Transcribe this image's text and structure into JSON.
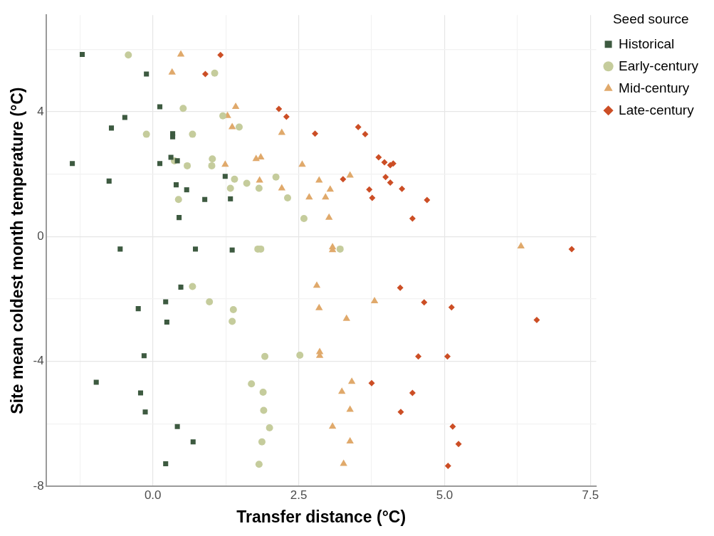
{
  "chart_data": {
    "type": "scatter",
    "xlabel": "Transfer distance (°C)",
    "ylabel": "Site mean coldest month temperature (°C)",
    "legend_title": "Seed source",
    "legend": "top right",
    "grid": true,
    "xlim": [
      -1.83,
      7.6
    ],
    "ylim": [
      -8,
      7.1
    ],
    "xticks": [
      {
        "value": -1.25,
        "label": null
      },
      {
        "value": 0,
        "label": "0.0"
      },
      {
        "value": 1.25,
        "label": null
      },
      {
        "value": 2.5,
        "label": "2.5"
      },
      {
        "value": 3.75,
        "label": null
      },
      {
        "value": 5,
        "label": "5.0"
      },
      {
        "value": 6.25,
        "label": null
      },
      {
        "value": 7.5,
        "label": "7.5"
      }
    ],
    "yticks": [
      -8,
      {
        "value": -6,
        "label": null
      },
      -4,
      {
        "value": -2,
        "label": null
      },
      0,
      {
        "value": 2,
        "label": null
      },
      4,
      {
        "value": 6,
        "label": null
      }
    ],
    "series": [
      {
        "name": "Historical",
        "color": "#3d5a40",
        "marker": "square",
        "x": [
          -1.21,
          -0.11,
          0.12,
          -0.48,
          -0.71,
          0.34,
          0.34,
          -1.38,
          0.12,
          0.31,
          0.42,
          -0.75,
          0.4,
          0.58,
          0.89,
          1.24,
          1.33,
          0.45,
          -0.56,
          0.73,
          1.36,
          0.48,
          -0.25,
          0.22,
          0.24,
          -0.15,
          -0.97,
          -0.21,
          -0.13,
          0.42,
          0.69,
          0.22
        ],
        "values": [
          5.84,
          5.21,
          4.16,
          3.82,
          3.48,
          3.3,
          3.2,
          2.34,
          2.34,
          2.54,
          2.43,
          1.78,
          1.66,
          1.5,
          1.19,
          1.93,
          1.21,
          0.61,
          -0.4,
          -0.4,
          -0.43,
          -1.62,
          -2.31,
          -2.09,
          -2.74,
          -3.82,
          -4.67,
          -5.01,
          -5.62,
          -6.09,
          -6.58,
          -7.28
        ]
      },
      {
        "name": "Early-century",
        "color": "#c5cc9c",
        "marker": "circle",
        "x": [
          -0.42,
          1.06,
          0.52,
          -0.11,
          0.68,
          1.2,
          1.48,
          0.37,
          1.02,
          1.01,
          0.59,
          1.4,
          1.33,
          0.44,
          1.61,
          2.11,
          1.82,
          2.31,
          2.59,
          1.8,
          1.85,
          3.21,
          0.68,
          0.97,
          1.38,
          1.36,
          1.92,
          2.52,
          1.69,
          1.89,
          1.9,
          2.0,
          1.87,
          1.82
        ],
        "values": [
          5.82,
          5.24,
          4.11,
          3.28,
          3.28,
          3.87,
          3.51,
          2.43,
          2.49,
          2.27,
          2.27,
          1.84,
          1.55,
          1.19,
          1.71,
          1.91,
          1.55,
          1.24,
          0.58,
          -0.4,
          -0.4,
          -0.4,
          -1.6,
          -2.09,
          -2.34,
          -2.72,
          -3.84,
          -3.8,
          -4.72,
          -4.99,
          -5.57,
          -6.13,
          -6.58,
          -7.3
        ]
      },
      {
        "name": "Mid-century",
        "color": "#e0a96b",
        "marker": "triangle",
        "x": [
          0.48,
          0.33,
          1.42,
          1.28,
          1.36,
          2.21,
          1.24,
          1.77,
          1.85,
          2.56,
          1.83,
          2.21,
          2.85,
          2.68,
          3.04,
          2.96,
          3.02,
          3.38,
          3.08,
          3.08,
          2.81,
          2.85,
          3.32,
          2.86,
          2.86,
          3.8,
          3.41,
          3.24,
          3.38,
          3.08,
          3.38,
          3.27,
          6.31
        ],
        "values": [
          5.84,
          5.26,
          4.16,
          3.87,
          3.51,
          3.33,
          2.31,
          2.49,
          2.54,
          2.31,
          1.8,
          1.55,
          1.8,
          1.26,
          1.51,
          1.26,
          0.61,
          1.96,
          -0.34,
          -0.43,
          -1.57,
          -2.29,
          -2.63,
          -3.7,
          -3.82,
          -2.07,
          -4.65,
          -4.97,
          -5.55,
          -6.09,
          -6.56,
          -7.28,
          -0.31
        ]
      },
      {
        "name": "Late-century",
        "color": "#cc4e25",
        "marker": "diamond",
        "x": [
          1.16,
          0.9,
          2.16,
          2.29,
          2.78,
          3.52,
          3.64,
          3.87,
          3.97,
          4.07,
          4.12,
          3.26,
          3.99,
          4.07,
          3.71,
          3.76,
          4.27,
          4.7,
          4.45,
          7.18,
          4.24,
          4.65,
          5.12,
          6.58,
          4.55,
          5.05,
          3.75,
          4.45,
          4.25,
          5.14,
          5.24,
          5.06
        ],
        "values": [
          5.82,
          5.21,
          4.09,
          3.84,
          3.3,
          3.51,
          3.28,
          2.54,
          2.38,
          2.29,
          2.34,
          1.84,
          1.91,
          1.73,
          1.51,
          1.24,
          1.53,
          1.17,
          0.58,
          -0.4,
          -1.64,
          -2.11,
          -2.27,
          -2.67,
          -3.84,
          -3.84,
          -4.7,
          -5.01,
          -5.62,
          -6.09,
          -6.65,
          -7.35
        ]
      }
    ]
  }
}
